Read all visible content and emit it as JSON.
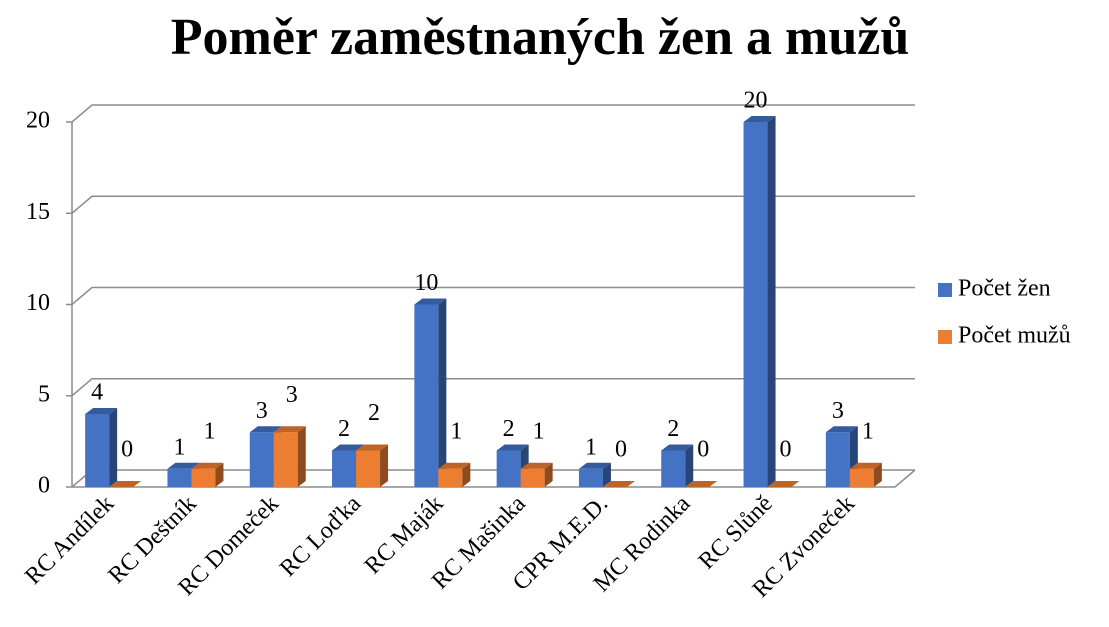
{
  "chart_data": {
    "type": "bar3d",
    "title": "Poměr zaměstnaných žen a mužů",
    "categories": [
      "RC Andílek",
      "RC Deštník",
      "RC Domeček",
      "RC Loďka",
      "RC Maják",
      "RC Mašinka",
      "CPR M.E.D.",
      "MC Rodinka",
      "RC Slůně",
      "RC Zvoneček"
    ],
    "series": [
      {
        "name": "Počet žen",
        "color": "#4472c4",
        "values": [
          4,
          1,
          3,
          2,
          10,
          2,
          1,
          2,
          20,
          3
        ]
      },
      {
        "name": "Počet mužů",
        "color": "#ed7d31",
        "values": [
          0,
          1,
          3,
          2,
          1,
          1,
          0,
          0,
          0,
          1
        ]
      }
    ],
    "ylim": [
      0,
      20
    ],
    "yticks": [
      0,
      5,
      10,
      15,
      20
    ],
    "grid": true,
    "legend": "right"
  }
}
